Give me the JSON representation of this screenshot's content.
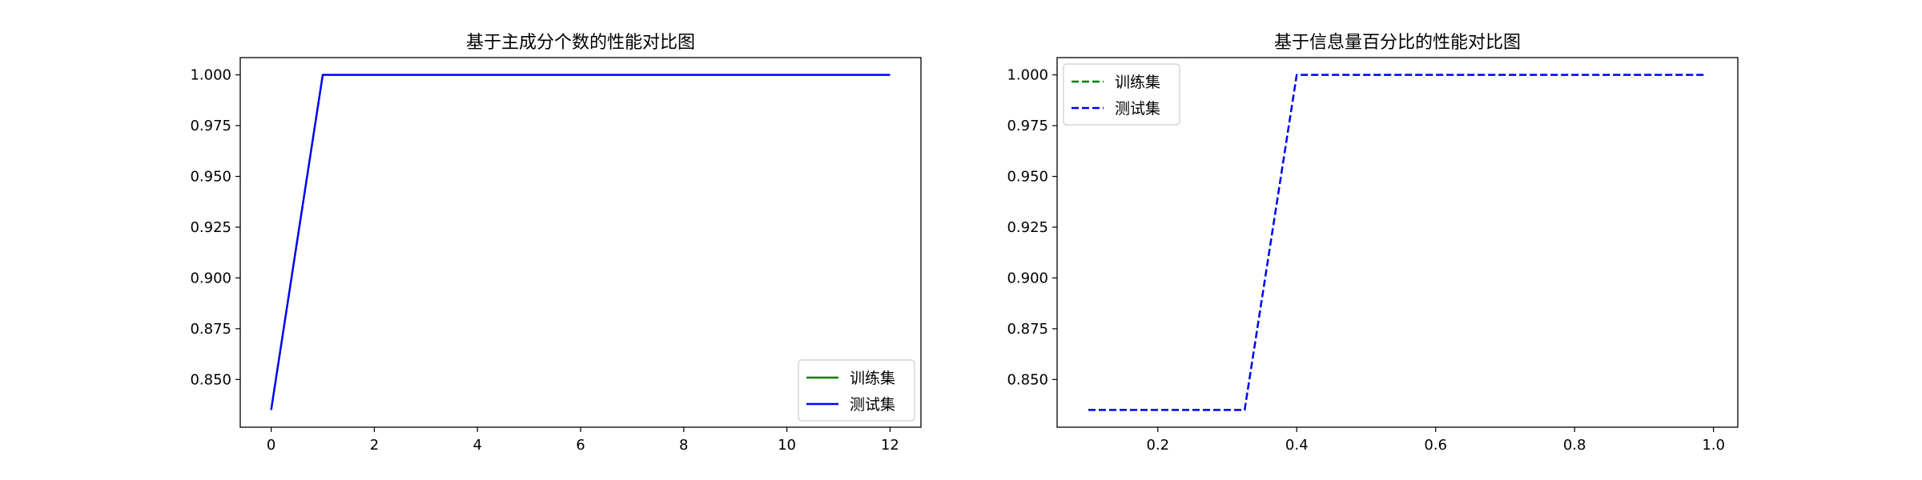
{
  "chart_data": [
    {
      "type": "line",
      "title": "基于主成分个数的性能对比图",
      "xlabel": "",
      "ylabel": "",
      "xlim": [
        -0.6,
        12.6
      ],
      "ylim": [
        0.8265,
        1.0085
      ],
      "xticks": [
        0,
        2,
        4,
        6,
        8,
        10,
        12
      ],
      "xtick_labels": [
        "0",
        "2",
        "4",
        "6",
        "8",
        "10",
        "12"
      ],
      "yticks": [
        0.85,
        0.875,
        0.9,
        0.925,
        0.95,
        0.975,
        1.0
      ],
      "ytick_labels": [
        "0.850",
        "0.875",
        "0.900",
        "0.925",
        "0.950",
        "0.975",
        "1.000"
      ],
      "grid": false,
      "legend": "lower-right",
      "x": [
        0,
        1,
        2,
        3,
        4,
        5,
        6,
        7,
        8,
        9,
        10,
        11,
        12
      ],
      "series": [
        {
          "name": "训练集",
          "color": "#008000",
          "dash": "solid",
          "values": [
            0.835,
            1.0,
            1.0,
            1.0,
            1.0,
            1.0,
            1.0,
            1.0,
            1.0,
            1.0,
            1.0,
            1.0,
            1.0
          ]
        },
        {
          "name": "测试集",
          "color": "#0000ff",
          "dash": "solid",
          "values": [
            0.835,
            1.0,
            1.0,
            1.0,
            1.0,
            1.0,
            1.0,
            1.0,
            1.0,
            1.0,
            1.0,
            1.0,
            1.0
          ]
        }
      ]
    },
    {
      "type": "line",
      "title": "基于信息量百分比的性能对比图",
      "xlabel": "",
      "ylabel": "",
      "xlim": [
        0.055,
        1.035
      ],
      "ylim": [
        0.8265,
        1.0085
      ],
      "xticks": [
        0.2,
        0.4,
        0.6,
        0.8,
        1.0
      ],
      "xtick_labels": [
        "0.2",
        "0.4",
        "0.6",
        "0.8",
        "1.0"
      ],
      "yticks": [
        0.85,
        0.875,
        0.9,
        0.925,
        0.95,
        0.975,
        1.0
      ],
      "ytick_labels": [
        "0.850",
        "0.875",
        "0.900",
        "0.925",
        "0.950",
        "0.975",
        "1.000"
      ],
      "grid": false,
      "legend": "upper-left",
      "x": [
        0.1,
        0.2,
        0.3,
        0.325,
        0.4,
        0.5,
        0.6,
        0.7,
        0.8,
        0.9,
        0.99
      ],
      "series": [
        {
          "name": "训练集",
          "color": "#008000",
          "dash": "dashed",
          "values": [
            0.835,
            0.835,
            0.835,
            0.835,
            1.0,
            1.0,
            1.0,
            1.0,
            1.0,
            1.0,
            1.0
          ]
        },
        {
          "name": "测试集",
          "color": "#0000ff",
          "dash": "dashed",
          "values": [
            0.835,
            0.835,
            0.835,
            0.835,
            1.0,
            1.0,
            1.0,
            1.0,
            1.0,
            1.0,
            1.0
          ]
        }
      ]
    }
  ]
}
